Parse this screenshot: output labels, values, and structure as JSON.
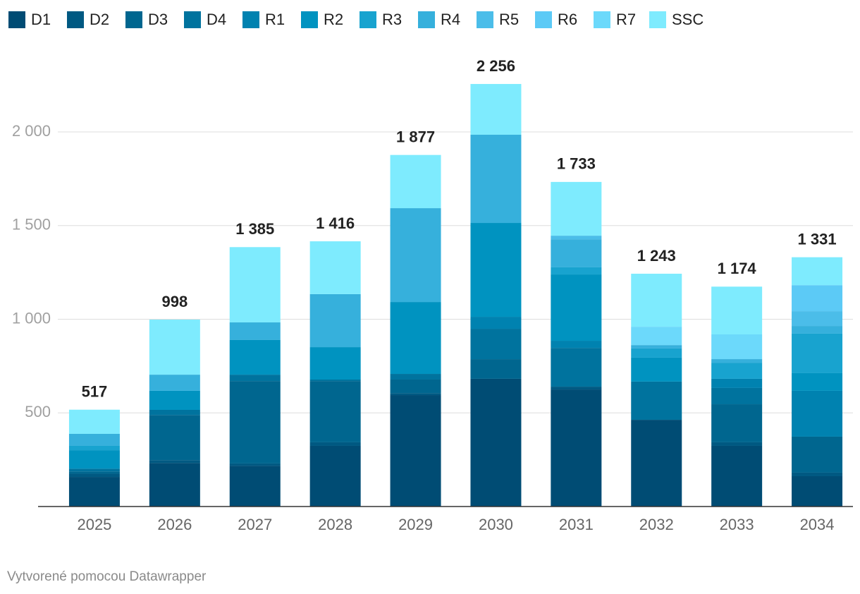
{
  "chart_data": {
    "type": "stacked_bar",
    "categories": [
      "2025",
      "2026",
      "2027",
      "2028",
      "2029",
      "2030",
      "2031",
      "2032",
      "2033",
      "2034"
    ],
    "series": [
      {
        "name": "D1",
        "color": "#004c74",
        "values": [
          158,
          233,
          218,
          324,
          595,
          682,
          625,
          463,
          324,
          162
        ]
      },
      {
        "name": "D2",
        "color": "#005982",
        "values": [
          17,
          15,
          12,
          19,
          10,
          0,
          15,
          0,
          19,
          19
        ]
      },
      {
        "name": "D3",
        "color": "#00668f",
        "values": [
          12,
          241,
          440,
          327,
          73,
          105,
          0,
          0,
          203,
          192
        ]
      },
      {
        "name": "D4",
        "color": "#00739e",
        "values": [
          15,
          27,
          34,
          8,
          30,
          162,
          207,
          204,
          87,
          0
        ]
      },
      {
        "name": "R1",
        "color": "#0082b0",
        "values": [
          0,
          0,
          0,
          0,
          0,
          64,
          38,
          0,
          49,
          245
        ]
      },
      {
        "name": "R2",
        "color": "#0093c0",
        "values": [
          99,
          102,
          185,
          173,
          384,
          501,
          354,
          128,
          0,
          94
        ]
      },
      {
        "name": "R3",
        "color": "#18a3cf",
        "values": [
          23,
          0,
          0,
          0,
          0,
          0,
          38,
          49,
          86,
          211
        ]
      },
      {
        "name": "R4",
        "color": "#36b0dc",
        "values": [
          64,
          86,
          94,
          283,
          501,
          471,
          150,
          18,
          19,
          41
        ]
      },
      {
        "name": "R5",
        "color": "#4bbde9",
        "values": [
          0,
          0,
          0,
          0,
          0,
          0,
          19,
          0,
          0,
          79
        ]
      },
      {
        "name": "R6",
        "color": "#5ccaf6",
        "values": [
          0,
          0,
          0,
          0,
          0,
          0,
          0,
          0,
          0,
          139
        ]
      },
      {
        "name": "R7",
        "color": "#6cd9fb",
        "values": [
          0,
          0,
          0,
          0,
          0,
          0,
          0,
          98,
          132,
          0
        ]
      },
      {
        "name": "SSC",
        "color": "#7eebfe",
        "values": [
          129,
          294,
          402,
          282,
          284,
          271,
          287,
          283,
          255,
          149
        ]
      }
    ],
    "totals": [
      517,
      998,
      1385,
      1416,
      1877,
      2256,
      1733,
      1243,
      1174,
      1331
    ],
    "total_labels": [
      "517",
      "998",
      "1 385",
      "1 416",
      "1 877",
      "2 256",
      "1 733",
      "1 243",
      "1 174",
      "1 331"
    ],
    "ylim": [
      0,
      2300
    ],
    "yticks": [
      500,
      {
        "value": 1000,
        "label": "1 000"
      },
      {
        "value": 1500,
        "label": "1 500"
      },
      {
        "value": 2000,
        "label": "2 000"
      }
    ],
    "grid": true,
    "legend": "top",
    "footer": "Vytvorené pomocou Datawrapper"
  }
}
